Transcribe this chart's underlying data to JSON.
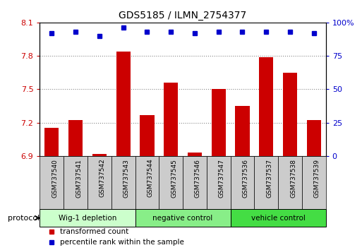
{
  "title": "GDS5185 / ILMN_2754377",
  "samples": [
    "GSM737540",
    "GSM737541",
    "GSM737542",
    "GSM737543",
    "GSM737544",
    "GSM737545",
    "GSM737546",
    "GSM737547",
    "GSM737536",
    "GSM737537",
    "GSM737538",
    "GSM737539"
  ],
  "bar_values": [
    7.15,
    7.22,
    6.92,
    7.84,
    7.27,
    7.56,
    6.93,
    7.5,
    7.35,
    7.79,
    7.65,
    7.22
  ],
  "percentile_values": [
    92,
    93,
    90,
    96,
    93,
    93,
    92,
    93,
    93,
    93,
    93,
    92
  ],
  "bar_color": "#cc0000",
  "dot_color": "#0000cc",
  "ylim_left": [
    6.9,
    8.1
  ],
  "ylim_right": [
    0,
    100
  ],
  "yticks_left": [
    6.9,
    7.2,
    7.5,
    7.8,
    8.1
  ],
  "yticks_right": [
    0,
    25,
    50,
    75,
    100
  ],
  "groups": [
    {
      "label": "Wig-1 depletion",
      "start": 0,
      "end": 4,
      "color": "#ccffcc"
    },
    {
      "label": "negative control",
      "start": 4,
      "end": 8,
      "color": "#88ee88"
    },
    {
      "label": "vehicle control",
      "start": 8,
      "end": 12,
      "color": "#44dd44"
    }
  ],
  "legend_red": "transformed count",
  "legend_blue": "percentile rank within the sample",
  "protocol_label": "protocol",
  "bar_baseline": 6.9,
  "tick_bg_color": "#cccccc",
  "group_border_color": "#000000",
  "xlim": [
    -0.5,
    11.5
  ]
}
